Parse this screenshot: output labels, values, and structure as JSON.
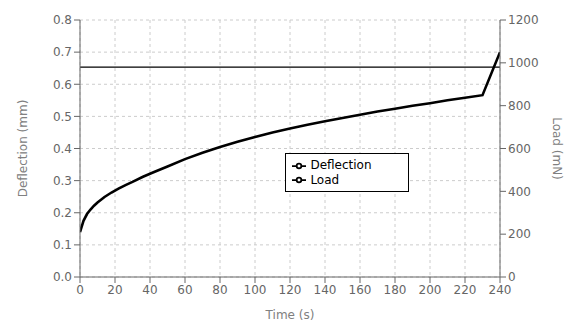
{
  "chart_data": {
    "type": "line",
    "xlabel": "Time (s)",
    "ylabel": "Deflection (mm)",
    "y2label": "Load (mN)",
    "x": [
      0,
      2,
      4,
      6,
      8,
      10,
      14,
      18,
      22,
      26,
      30,
      36,
      42,
      50,
      60,
      70,
      80,
      90,
      100,
      110,
      120,
      130,
      140,
      150,
      160,
      170,
      180,
      190,
      200,
      210,
      220,
      230,
      240
    ],
    "xlim": [
      0,
      240
    ],
    "xticks": [
      0,
      20,
      40,
      60,
      80,
      100,
      120,
      140,
      160,
      180,
      200,
      220,
      240
    ],
    "ylim": [
      0,
      0.8
    ],
    "yticks": [
      {
        "value": 0,
        "label": "0.0"
      },
      0.1,
      0.2,
      0.3,
      0.4,
      0.5,
      0.6,
      0.7,
      0.8
    ],
    "y2lim": [
      0,
      1200
    ],
    "y2ticks": [
      0,
      200,
      400,
      600,
      800,
      1000,
      1200
    ],
    "grid": true,
    "legend": "center",
    "series": [
      {
        "name": "Deflection",
        "color": "#000000",
        "values": [
          0.14,
          0.175,
          0.196,
          0.21,
          0.222,
          0.232,
          0.249,
          0.263,
          0.275,
          0.286,
          0.296,
          0.312,
          0.326,
          0.344,
          0.367,
          0.387,
          0.405,
          0.421,
          0.436,
          0.45,
          0.462,
          0.474,
          0.485,
          0.495,
          0.505,
          0.515,
          0.524,
          0.533,
          0.541,
          0.55,
          0.558,
          0.566,
          0.7
        ]
      },
      {
        "name": "Load",
        "color": "#000000",
        "axis": "y2",
        "x": [
          0,
          240
        ],
        "values": [
          980,
          980
        ]
      }
    ]
  }
}
